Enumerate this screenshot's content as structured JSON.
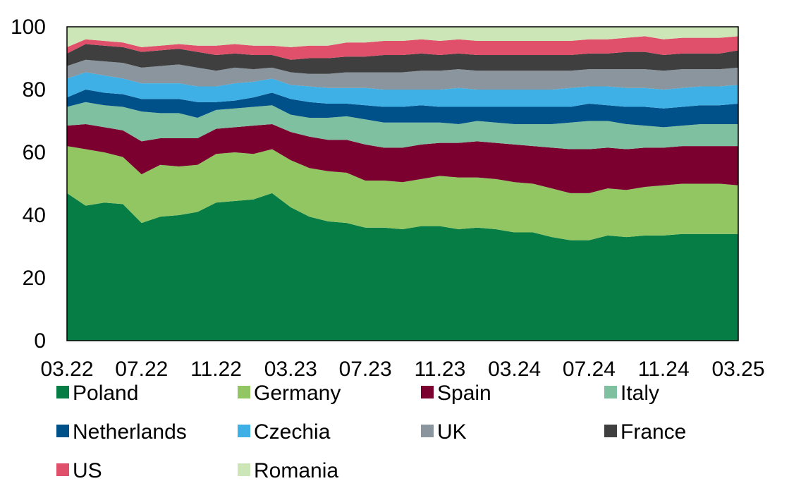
{
  "chart_data": {
    "type": "area",
    "stacked": true,
    "title": "",
    "xlabel": "",
    "ylabel": "",
    "ylim": [
      0,
      100
    ],
    "yticks": [
      "0",
      "20",
      "40",
      "60",
      "80",
      "100"
    ],
    "xticks": [
      "03.22",
      "07.22",
      "11.22",
      "03.23",
      "07.23",
      "11.23",
      "03.24",
      "07.24",
      "11.24",
      "03.25"
    ],
    "x": [
      "03.22",
      "04.22",
      "05.22",
      "06.22",
      "07.22",
      "08.22",
      "09.22",
      "10.22",
      "11.22",
      "12.22",
      "01.23",
      "02.23",
      "03.23",
      "04.23",
      "05.23",
      "06.23",
      "07.23",
      "08.23",
      "09.23",
      "10.23",
      "11.23",
      "12.23",
      "01.24",
      "02.24",
      "03.24",
      "04.24",
      "05.24",
      "06.24",
      "07.24",
      "08.24",
      "09.24",
      "10.24",
      "11.24",
      "12.24",
      "01.25",
      "02.25",
      "03.25"
    ],
    "legend_position": "bottom",
    "series": [
      {
        "name": "Poland",
        "color": "#067D45",
        "values": [
          47,
          43,
          44,
          43.5,
          37.5,
          39.5,
          40,
          41,
          44,
          44.5,
          45,
          47,
          42.5,
          39.5,
          38,
          37.5,
          36,
          36,
          35.5,
          36.5,
          36.5,
          35.5,
          36,
          35.5,
          34.5,
          34.5,
          33,
          32,
          32,
          33.5,
          33,
          33.5,
          33.5,
          34,
          34,
          34,
          34
        ]
      },
      {
        "name": "Germany",
        "color": "#92C663",
        "values": [
          15,
          18,
          16,
          15,
          15.5,
          16.5,
          15.5,
          15,
          15.5,
          15.5,
          14.5,
          14,
          15,
          15.5,
          16,
          16,
          15,
          15,
          15,
          15,
          16,
          16.5,
          16,
          16,
          16,
          15.5,
          15.5,
          15,
          15,
          15,
          15,
          15.5,
          16,
          16,
          16,
          16,
          15.5
        ]
      },
      {
        "name": "Spain",
        "color": "#7B0030",
        "values": [
          6.5,
          8,
          8,
          8.5,
          10.5,
          8.5,
          9,
          8.5,
          8,
          8,
          9,
          8,
          9,
          10,
          10,
          10.5,
          11.5,
          10.5,
          11,
          11,
          10.5,
          11,
          11.5,
          11.5,
          12,
          12,
          13,
          14,
          14,
          13,
          13,
          12.5,
          12,
          12,
          12,
          12,
          12.5
        ]
      },
      {
        "name": "Italy",
        "color": "#7FC0A0",
        "values": [
          6,
          7,
          7,
          7.5,
          9.5,
          8,
          8,
          6.5,
          6,
          6,
          6,
          6,
          5.5,
          6,
          7,
          7.5,
          8,
          8,
          8,
          7,
          6.5,
          6,
          6.5,
          6.5,
          6.5,
          7,
          7.5,
          8.5,
          9,
          8.5,
          8,
          7,
          6.5,
          6.5,
          7,
          7,
          7
        ]
      },
      {
        "name": "Netherlands",
        "color": "#00518A",
        "values": [
          3,
          4,
          4,
          4,
          4,
          4.5,
          4.5,
          5,
          2.5,
          2.5,
          3,
          4,
          5,
          5,
          4.5,
          4,
          4.5,
          5,
          5,
          5.5,
          5,
          5.5,
          4.5,
          5,
          5.5,
          5.5,
          5.5,
          5,
          5.5,
          5,
          5.5,
          6,
          6,
          6,
          6,
          6,
          6.5
        ]
      },
      {
        "name": "Czechia",
        "color": "#3EB0E6",
        "values": [
          6,
          5.5,
          5.5,
          5,
          5,
          5,
          5,
          5,
          5,
          5.5,
          5,
          4.5,
          4.5,
          5,
          5,
          5,
          5.5,
          5.5,
          5.5,
          5,
          5.5,
          6,
          5.5,
          5.5,
          5.5,
          5.5,
          5.5,
          6,
          5.5,
          6,
          6,
          6,
          6,
          6,
          6,
          6,
          6
        ]
      },
      {
        "name": "UK",
        "color": "#8A959E",
        "values": [
          4,
          4,
          4.5,
          5,
          5,
          5.5,
          6,
          6,
          5,
          5,
          4,
          3.5,
          4,
          4,
          4.5,
          5,
          5,
          5.5,
          5.5,
          6,
          6,
          6,
          6,
          6,
          6,
          6,
          6,
          5.5,
          5.5,
          5.5,
          6,
          6,
          6,
          6,
          5.5,
          5.5,
          5.5
        ]
      },
      {
        "name": "France",
        "color": "#3F3F3F",
        "values": [
          4,
          5,
          5,
          5,
          5,
          5,
          5,
          5,
          5,
          4.5,
          4.5,
          4,
          4,
          5,
          5,
          5,
          5,
          5.5,
          5.5,
          5.5,
          5,
          5,
          5,
          5,
          5,
          5,
          5,
          5,
          5,
          5,
          5.5,
          5.5,
          5,
          5,
          5,
          5,
          5.5
        ]
      },
      {
        "name": "US",
        "color": "#E0506A",
        "values": [
          2,
          1.5,
          1.5,
          1.5,
          1.5,
          1.5,
          1.5,
          2,
          3,
          3,
          3,
          3,
          4,
          4,
          4,
          4.5,
          4.5,
          4.5,
          4.5,
          4.5,
          4.5,
          4.5,
          4.5,
          4.5,
          4.5,
          4.5,
          4.5,
          4.5,
          4.5,
          4.5,
          4.5,
          5,
          5,
          5,
          5,
          5,
          4.5
        ]
      },
      {
        "name": "Romania",
        "color": "#CCE6B8",
        "values": [
          6.5,
          4,
          4.5,
          5,
          5.5,
          6,
          5.5,
          6,
          6,
          5.5,
          6,
          6,
          6.5,
          6,
          6,
          5,
          4.5,
          5,
          5,
          4.5,
          4.5,
          4,
          4.5,
          4.5,
          4.5,
          4.5,
          4.5,
          4.5,
          4.5,
          5,
          4.5,
          4.5,
          4.5,
          4.5,
          4.5,
          4.5,
          4.5
        ]
      }
    ]
  }
}
